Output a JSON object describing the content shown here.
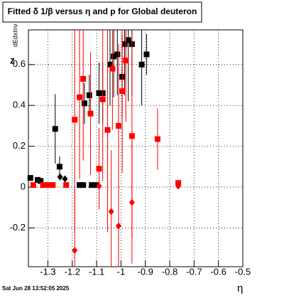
{
  "chart_data": {
    "type": "scatter",
    "title": "Fitted δ 1/β versus η and p for Global deuteron",
    "x_label": "η",
    "y_label": "z",
    "y_label_sub": "dEdxInv",
    "footer": "Sat Jun 28 13:52:05 2025",
    "xlim": [
      -1.38,
      -0.5
    ],
    "ylim": [
      -0.39,
      0.77
    ],
    "xticks": [
      -1.3,
      -1.2,
      -1.1,
      -1,
      -0.9,
      -0.8,
      -0.7,
      -0.6,
      -0.5
    ],
    "yticks": [
      -0.2,
      0,
      0.2,
      0.4,
      0.6
    ],
    "grid": true,
    "series": [
      {
        "color": "#000000",
        "marker": "square",
        "x": [
          -1.372,
          -1.342,
          -1.33,
          -1.27,
          -1.252,
          -1.17,
          -1.155,
          -1.12,
          -1.1,
          -1.15,
          -1.13,
          -1.09,
          -1.075,
          -1.045,
          -1.03,
          -1.015,
          -0.995,
          -0.985,
          -0.97,
          -0.955,
          -0.915,
          -0.895
        ],
        "values": [
          0.045,
          0.035,
          0.03,
          0.285,
          0.1,
          0.01,
          0.01,
          0.01,
          0.01,
          0.41,
          0.45,
          0.46,
          0.46,
          0.6,
          0.64,
          0.65,
          0.54,
          0.7,
          0.72,
          0.7,
          0.6,
          0.65
        ],
        "errors": [
          0.01,
          0.01,
          0.01,
          0.17,
          0.05,
          0.01,
          0.01,
          0.01,
          0.01,
          0.1,
          0.1,
          0.15,
          0.15,
          0.2,
          0.2,
          0.2,
          0.2,
          0.25,
          0.3,
          0.25,
          0.2,
          0.1
        ]
      },
      {
        "color": "#ff0000",
        "marker": "square",
        "x": [
          -1.36,
          -1.32,
          -1.3,
          -1.28,
          -1.225,
          -1.19,
          -1.17,
          -1.155,
          -1.125,
          -1.09,
          -1.075,
          -1.055,
          -1.035,
          -1.01,
          -0.995,
          -0.98,
          -0.955,
          -0.85,
          -0.765
        ],
        "values": [
          0.01,
          0.01,
          0.01,
          0.01,
          0.01,
          0.33,
          0.44,
          0.53,
          0.36,
          0.09,
          0.43,
          0.28,
          0.58,
          0.3,
          0.47,
          0.62,
          0.25,
          0.235,
          0.02
        ],
        "errors": [
          0.01,
          0.01,
          0.01,
          0.01,
          0.01,
          0.55,
          0.4,
          0.4,
          0.3,
          0.2,
          0.4,
          0.5,
          0.3,
          0.4,
          0.4,
          0.3,
          0.5,
          0.15,
          0.01
        ]
      },
      {
        "color": "#ff0000",
        "marker": "diamond",
        "x": [
          -1.19,
          -1.04,
          -1.01,
          -0.955,
          -1.09,
          -0.765
        ],
        "values": [
          -0.31,
          -0.12,
          -0.19,
          -0.075,
          0.005,
          0.005
        ],
        "errors": [
          0.3,
          0.3,
          0.3,
          0.3,
          0.02,
          0.01
        ]
      },
      {
        "color": "#000000",
        "marker": "diamond",
        "x": [
          -1.25,
          -1.23
        ],
        "values": [
          0.05,
          0.04
        ],
        "errors": [
          0.01,
          0.01
        ]
      }
    ]
  }
}
